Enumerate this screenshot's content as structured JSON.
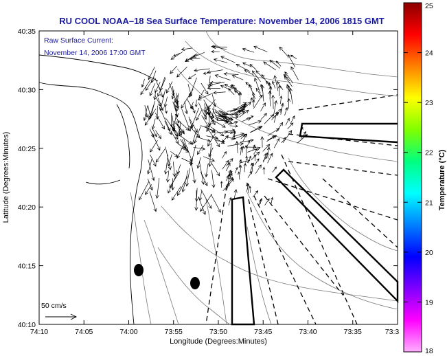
{
  "title": "RU COOL  NOAA–18  Sea Surface Temperature:  November 14, 2006 1815 GMT",
  "current_label_1": "Raw Surface Current:",
  "current_label_2": "November 14, 2006 17:00 GMT",
  "scale_label": "50 cm/s",
  "xlabel": "Longitude (Degrees:Minutes)",
  "ylabel": "Latitude (Degrees:Minutes)",
  "colorbar_label": "Temperature (°C)",
  "colorbar_ticks": [
    "25",
    "24",
    "23",
    "22",
    "21",
    "20",
    "19",
    "18"
  ],
  "x_ticks": [
    "74:10",
    "74:05",
    "74:00",
    "73:55",
    "73:50",
    "73:45",
    "73:40",
    "73:35",
    "73:3"
  ],
  "y_ticks": [
    "40:35",
    "40:30",
    "40:25",
    "40:20",
    "40:15",
    "40:10"
  ],
  "colorbar_colors": [
    "#8b0000",
    "#ff0000",
    "#ff8000",
    "#ffff00",
    "#80ff00",
    "#00ff80",
    "#00ffff",
    "#0080ff",
    "#0000ff",
    "#8000ff",
    "#ff00ff",
    "#ffb0ff"
  ],
  "chart_data": {
    "type": "map",
    "xlim": [
      "74:10",
      "73:30"
    ],
    "ylim": [
      "40:10",
      "40:35"
    ],
    "colorbar_range": [
      18,
      25
    ]
  }
}
